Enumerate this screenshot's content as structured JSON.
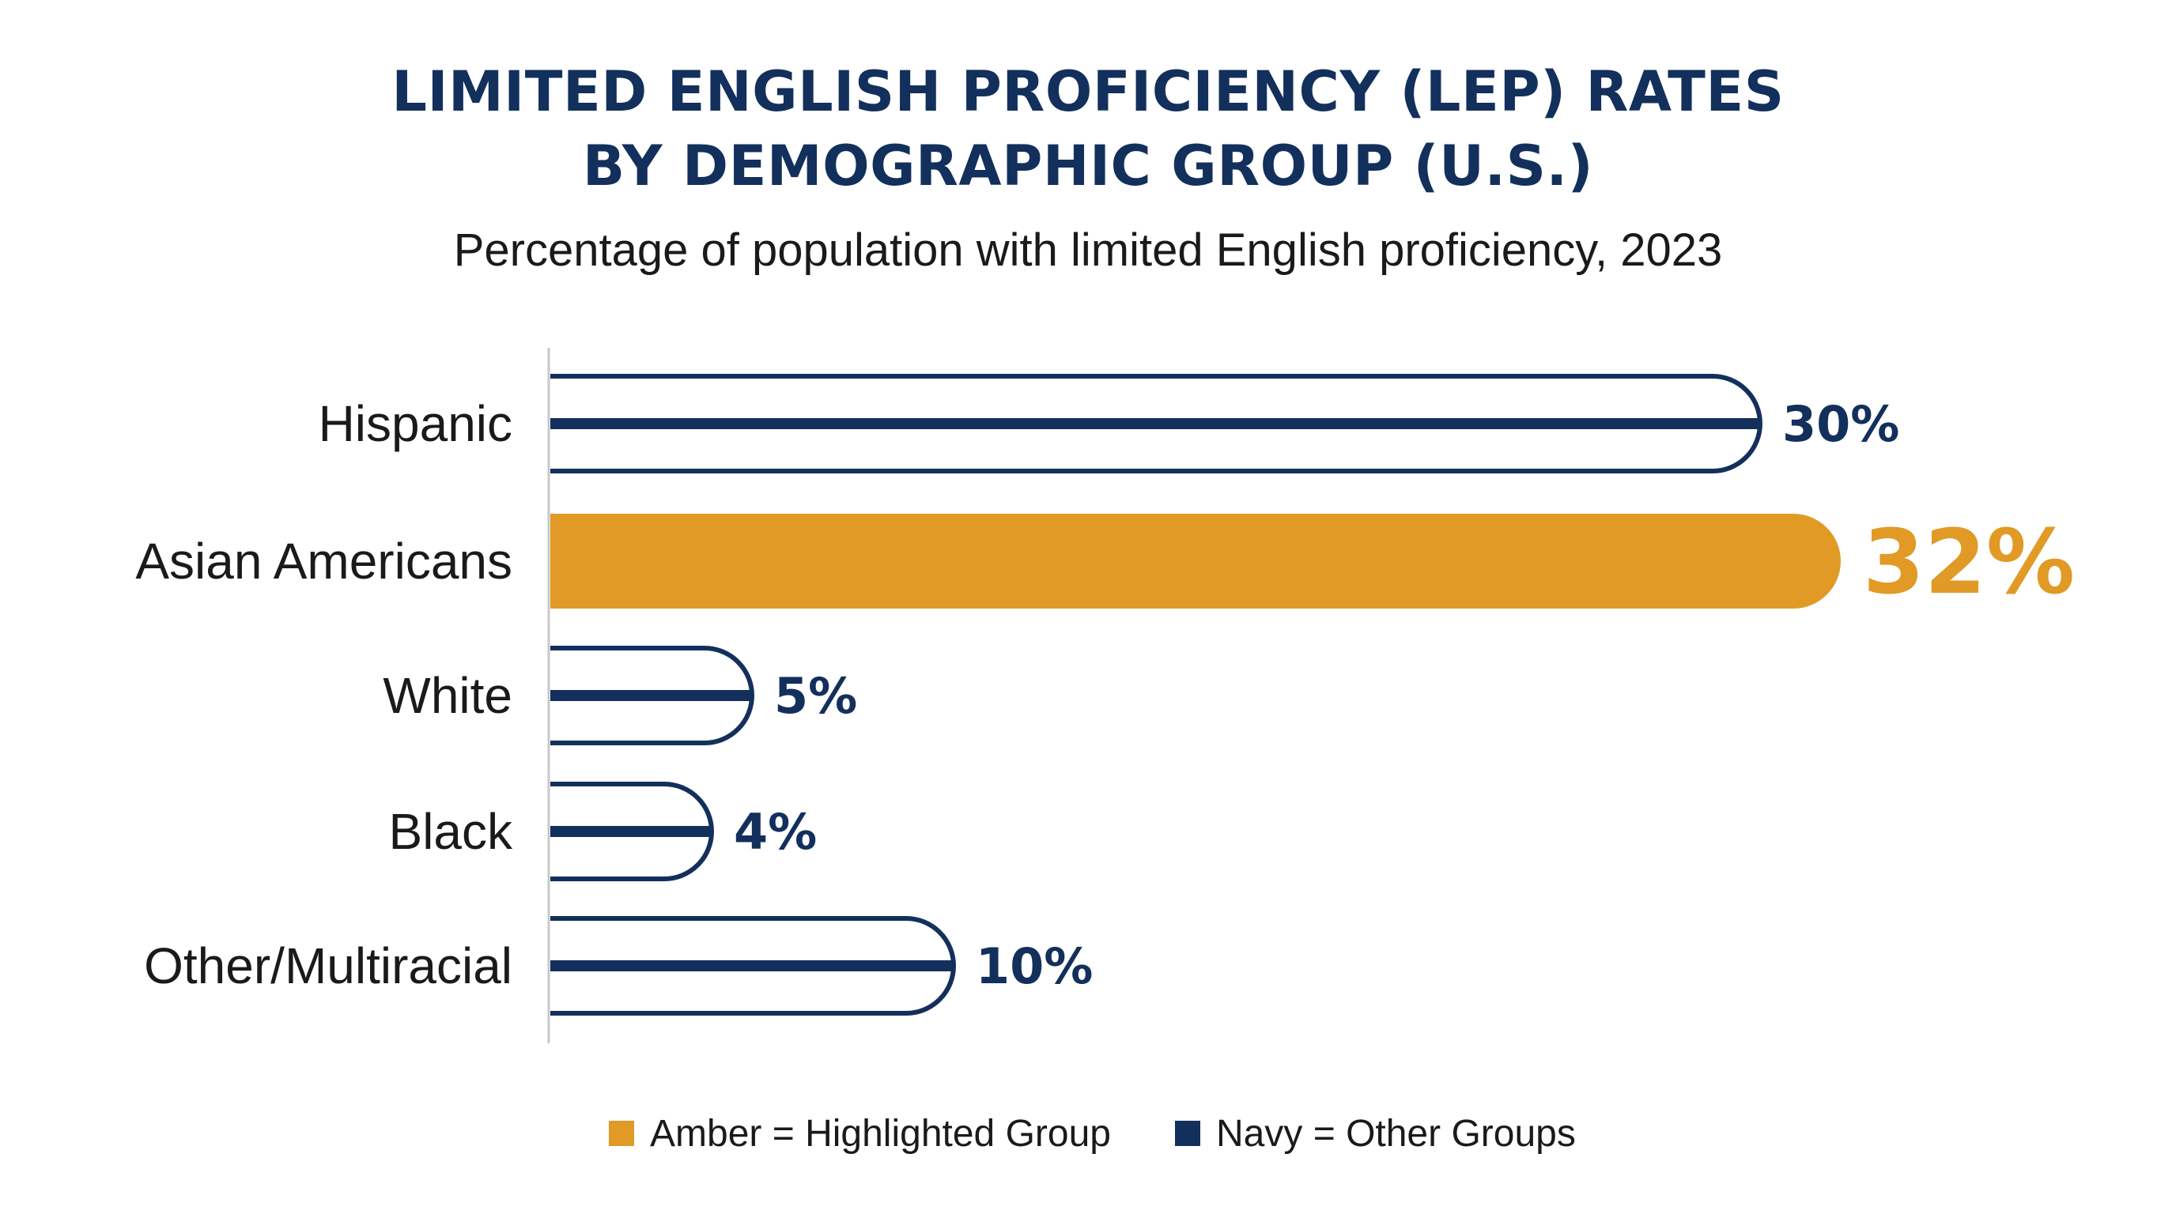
{
  "colors": {
    "navy": "#13305c",
    "amber": "#e09a25",
    "text": "#1a1a1a",
    "axis": "#c8c8c8",
    "background": "#ffffff"
  },
  "chart_data": {
    "type": "bar",
    "orientation": "horizontal",
    "title_lines": [
      "LIMITED ENGLISH PROFICIENCY (LEP) RATES",
      "BY DEMOGRAPHIC GROUP (U.S.)"
    ],
    "subtitle": "Percentage of population with limited English proficiency, 2023",
    "xlabel": "",
    "ylabel": "",
    "unit": "%",
    "xlim": [
      0,
      32
    ],
    "grid": false,
    "categories": [
      "Hispanic",
      "Asian Americans",
      "White",
      "Black",
      "Other/Multiracial"
    ],
    "values": [
      30,
      32,
      5,
      4,
      10
    ],
    "value_labels": [
      "30%",
      "32%",
      "5%",
      "4%",
      "10%"
    ],
    "highlighted": [
      false,
      true,
      false,
      false,
      false
    ],
    "legend": {
      "placement": "bottom-center",
      "items": [
        {
          "label": "Amber = Highlighted Group",
          "color": "#e09a25"
        },
        {
          "label": "Navy = Other Groups",
          "color": "#13305c"
        }
      ]
    }
  }
}
